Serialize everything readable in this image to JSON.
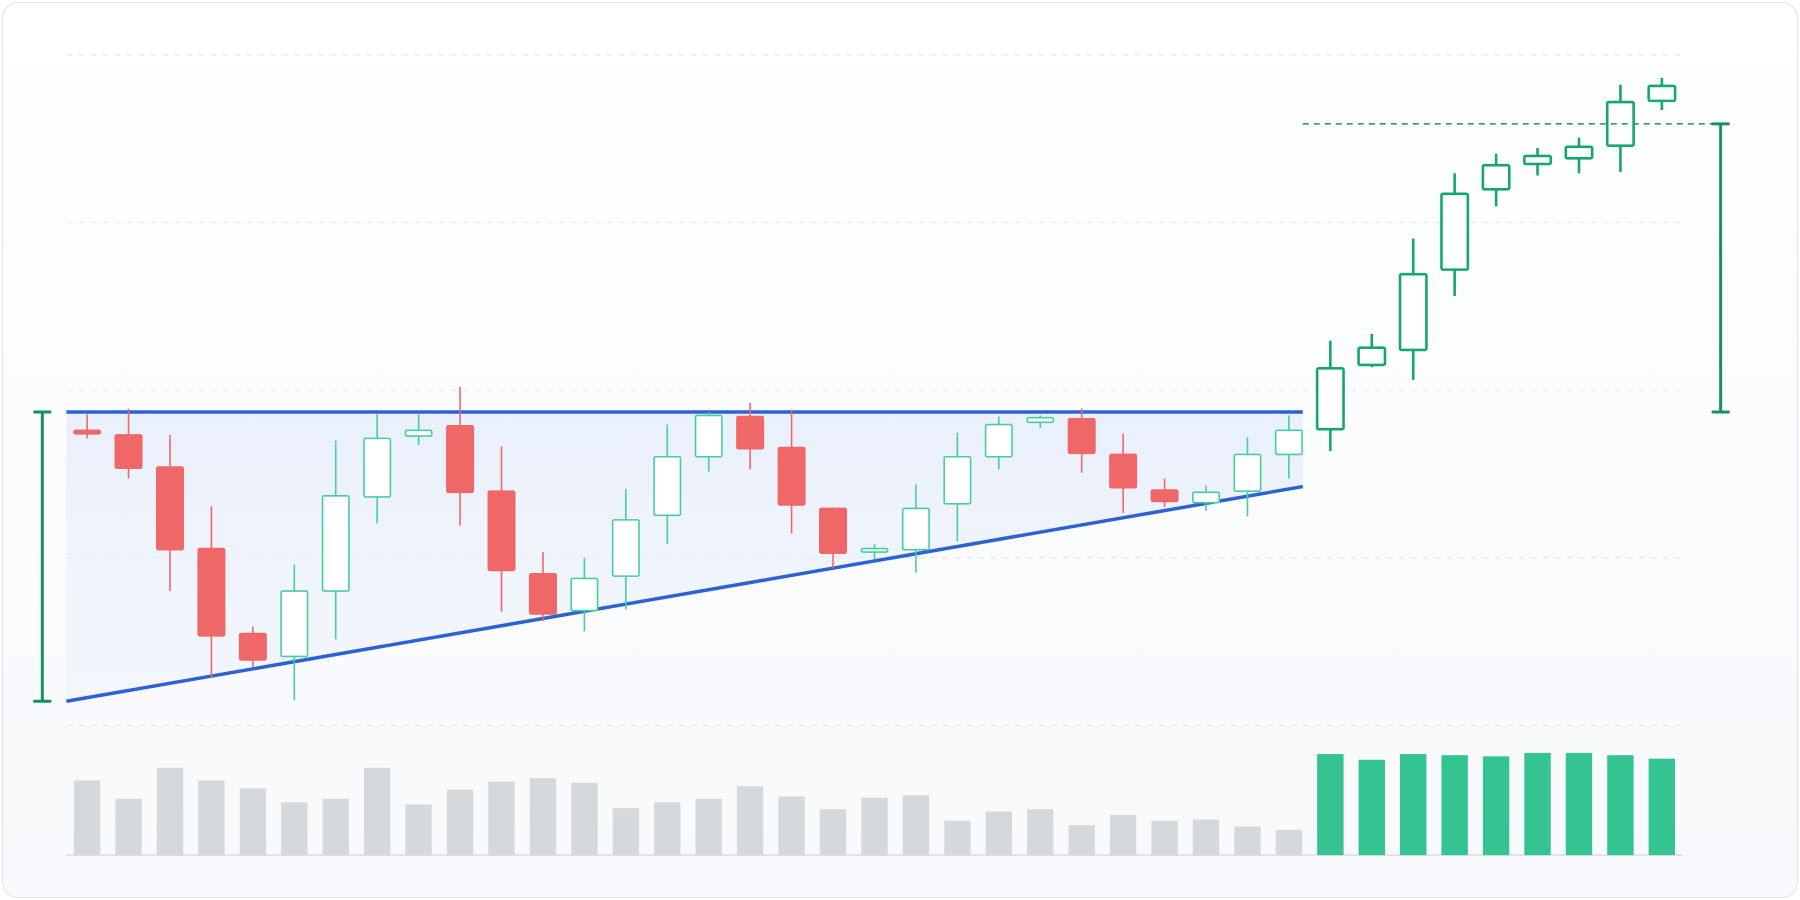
{
  "chart_data": {
    "type": "candlestick",
    "candles": [
      {
        "open": 257,
        "high": 271,
        "low": 250,
        "close": 254
      },
      {
        "open": 253,
        "high": 276,
        "low": 215,
        "close": 224
      },
      {
        "open": 225,
        "high": 253,
        "low": 117,
        "close": 153
      },
      {
        "open": 154,
        "high": 191,
        "low": 41,
        "close": 78
      },
      {
        "open": 80,
        "high": 86,
        "low": 51,
        "close": 57
      },
      {
        "open": 60,
        "high": 140,
        "low": 22,
        "close": 117
      },
      {
        "open": 117,
        "high": 248,
        "low": 75,
        "close": 200
      },
      {
        "open": 199,
        "high": 271,
        "low": 176,
        "close": 250
      },
      {
        "open": 252,
        "high": 271,
        "low": 244,
        "close": 257
      },
      {
        "open": 261,
        "high": 295,
        "low": 174,
        "close": 203
      },
      {
        "open": 204,
        "high": 243,
        "low": 99,
        "close": 135
      },
      {
        "open": 132,
        "high": 151,
        "low": 91,
        "close": 97
      },
      {
        "open": 100,
        "high": 146,
        "low": 82,
        "close": 128
      },
      {
        "open": 130,
        "high": 206,
        "low": 101,
        "close": 179
      },
      {
        "open": 183,
        "high": 262,
        "low": 158,
        "close": 234
      },
      {
        "open": 234,
        "high": 273,
        "low": 221,
        "close": 270
      },
      {
        "open": 269,
        "high": 281,
        "low": 223,
        "close": 241
      },
      {
        "open": 242,
        "high": 275,
        "low": 167,
        "close": 192
      },
      {
        "open": 189,
        "high": 190,
        "low": 137,
        "close": 150
      },
      {
        "open": 151,
        "high": 158,
        "low": 145,
        "close": 154
      },
      {
        "open": 153,
        "high": 210,
        "low": 133,
        "close": 189
      },
      {
        "open": 193,
        "high": 255,
        "low": 160,
        "close": 234
      },
      {
        "open": 234,
        "high": 269,
        "low": 223,
        "close": 262
      },
      {
        "open": 264,
        "high": 270,
        "low": 259,
        "close": 268
      },
      {
        "open": 267,
        "high": 276,
        "low": 220,
        "close": 237
      },
      {
        "open": 236,
        "high": 254,
        "low": 185,
        "close": 207
      },
      {
        "open": 205,
        "high": 215,
        "low": 190,
        "close": 195
      },
      {
        "open": 194,
        "high": 209,
        "low": 187,
        "close": 203
      },
      {
        "open": 204,
        "high": 251,
        "low": 182,
        "close": 236
      },
      {
        "open": 236,
        "high": 270,
        "low": 215,
        "close": 257
      },
      {
        "open": 258,
        "high": 335,
        "low": 239,
        "close": 311
      },
      {
        "open": 314,
        "high": 341,
        "low": 312,
        "close": 329
      },
      {
        "open": 327,
        "high": 424,
        "low": 301,
        "close": 393
      },
      {
        "open": 397,
        "high": 481,
        "low": 374,
        "close": 463
      },
      {
        "open": 467,
        "high": 498,
        "low": 452,
        "close": 488
      },
      {
        "open": 489,
        "high": 503,
        "low": 479,
        "close": 496
      },
      {
        "open": 494,
        "high": 512,
        "low": 481,
        "close": 504
      },
      {
        "open": 505,
        "high": 558,
        "low": 482,
        "close": 543
      },
      {
        "open": 544,
        "high": 564,
        "low": 536,
        "close": 557
      }
    ],
    "volume": [
      65,
      49,
      76,
      65,
      58,
      46,
      49,
      76,
      44,
      57,
      64,
      67,
      63,
      41,
      46,
      49,
      60,
      51,
      40,
      50,
      52,
      30,
      38,
      40,
      26,
      35,
      30,
      31,
      25,
      22,
      88,
      83,
      88,
      87,
      86,
      89,
      89,
      87,
      84
    ],
    "ylim": [
      0,
      600
    ],
    "yticks": [
      0,
      146,
      292,
      438,
      584
    ],
    "vlim": [
      0,
      100
    ],
    "grid": true,
    "resistance": 273,
    "support": [
      21,
      208
    ],
    "target": 524,
    "colors": {
      "up": "#45cf9c",
      "down": "#ef6767",
      "breakout": "#14a86c",
      "volume": "#d6d9db",
      "volume_breakout": "#34c491",
      "trendline": "#2d62d4",
      "measure": "#15935f"
    }
  }
}
